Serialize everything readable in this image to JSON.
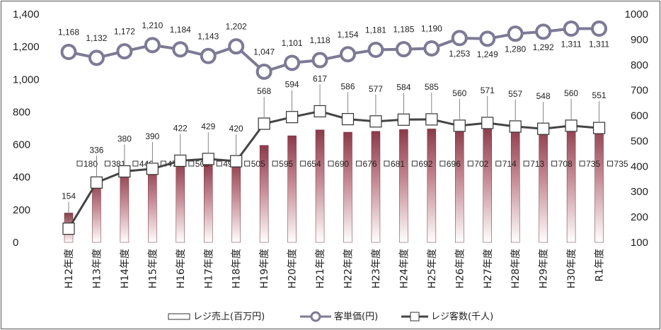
{
  "chart_data": {
    "type": "bar",
    "categories": [
      "H12年度",
      "H13年度",
      "H14年度",
      "H15年度",
      "H16年度",
      "H17年度",
      "H18年度",
      "H19年度",
      "H20年度",
      "H21年度",
      "H22年度",
      "H23年度",
      "H24年度",
      "H25年度",
      "H26年度",
      "H27年度",
      "H28年度",
      "H29年度",
      "H30年度",
      "R1年度"
    ],
    "left_axis": {
      "min": 0,
      "max": 1400,
      "ticks": [
        "0",
        "200",
        "400",
        "600",
        "800",
        "1,000",
        "1,200",
        "1,400"
      ]
    },
    "right_axis": {
      "min": 100,
      "max": 1000,
      "ticks": [
        "100",
        "200",
        "300",
        "400",
        "500",
        "600",
        "700",
        "800",
        "900",
        "1000"
      ]
    },
    "series": [
      {
        "name": "レジ売上(百万円)",
        "type": "bar",
        "axis": "left",
        "color": "#8c3a48",
        "values": [
          180,
          381,
          446,
          472,
          500,
          491,
          505,
          595,
          654,
          690,
          676,
          681,
          692,
          696,
          702,
          714,
          713,
          708,
          735,
          735
        ],
        "labels": [
          "180",
          "381",
          "446",
          "472",
          "500",
          "491",
          "505",
          "595",
          "654",
          "690",
          "676",
          "681",
          "692",
          "696",
          "702",
          "714",
          "713",
          "708",
          "735",
          "735"
        ]
      },
      {
        "name": "客単価(円)",
        "type": "line",
        "axis": "left",
        "color": "#7d7a96",
        "values": [
          1168,
          1132,
          1172,
          1210,
          1184,
          1143,
          1202,
          1047,
          1101,
          1118,
          1154,
          1181,
          1185,
          1190,
          1253,
          1249,
          1280,
          1292,
          1311,
          1311
        ],
        "labels": [
          "1,168",
          "1,132",
          "1,172",
          "1,210",
          "1,184",
          "1,143",
          "1,202",
          "1,047",
          "1,101",
          "1,118",
          "1,154",
          "1,181",
          "1,185",
          "1,190",
          "1,253",
          "1,249",
          "1,280",
          "1,292",
          "1,311",
          "1,311"
        ]
      },
      {
        "name": "レジ客数(千人)",
        "type": "line",
        "axis": "right",
        "color": "#444444",
        "values": [
          154,
          336,
          380,
          390,
          422,
          429,
          420,
          568,
          594,
          617,
          586,
          577,
          584,
          585,
          560,
          571,
          557,
          548,
          560,
          551
        ],
        "labels": [
          "154",
          "336",
          "380",
          "390",
          "422",
          "429",
          "420",
          "568",
          "594",
          "617",
          "586",
          "577",
          "584",
          "585",
          "560",
          "571",
          "557",
          "548",
          "560",
          "551"
        ]
      }
    ],
    "legend_position": "bottom",
    "grid": false
  }
}
